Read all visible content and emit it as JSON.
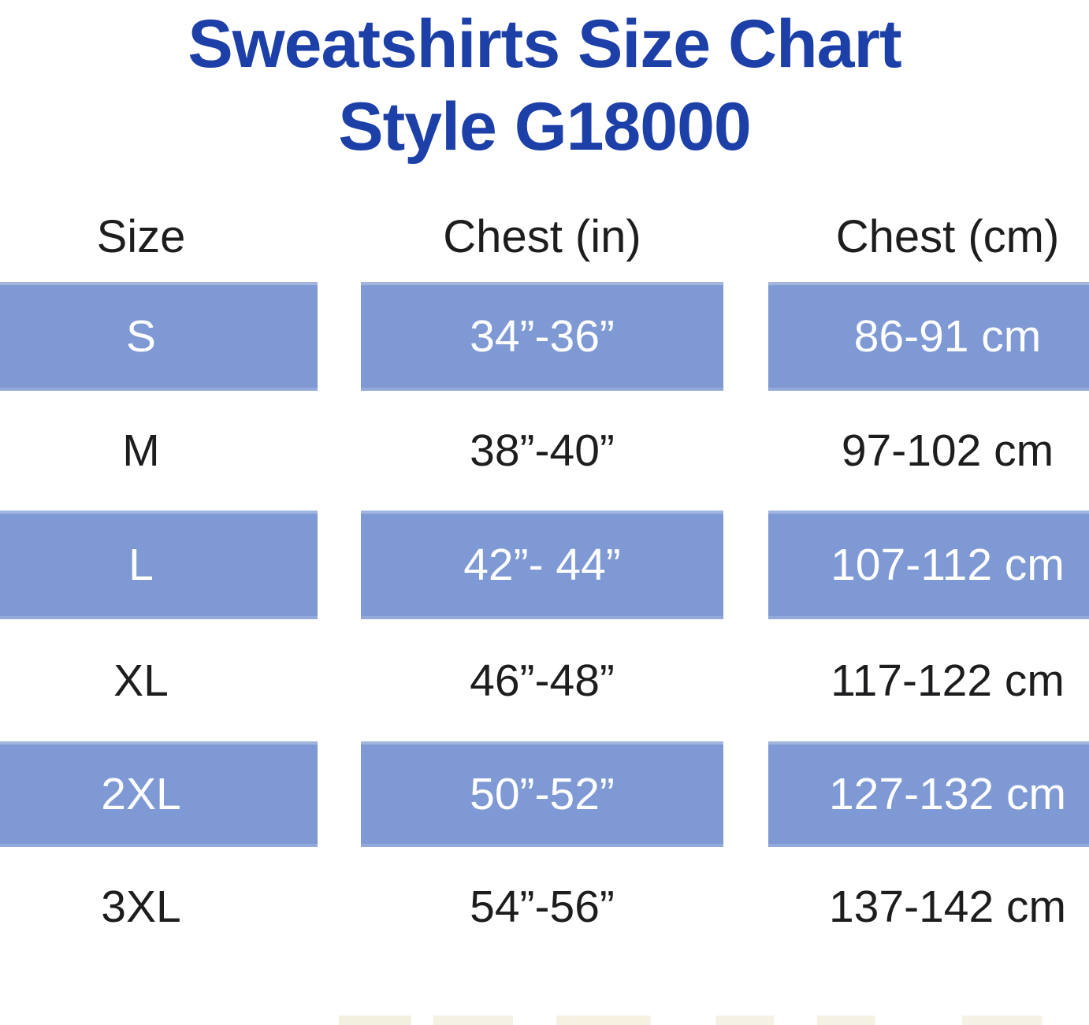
{
  "title": {
    "line1": "Sweatshirts Size Chart",
    "line2": "Style G18000"
  },
  "colors": {
    "title_blue": "#1c3fa8",
    "cell_blue": "#7e99d3",
    "text_dark": "#1d1d1f",
    "text_light": "#ffffff"
  },
  "table": {
    "headers": [
      "Size",
      "Chest (in)",
      "Chest (cm)"
    ],
    "rows": [
      {
        "size": "S",
        "chest_in": "34”-36”",
        "chest_cm": "86-91 cm",
        "highlighted": true
      },
      {
        "size": "M",
        "chest_in": "38”-40”",
        "chest_cm": "97-102 cm",
        "highlighted": false
      },
      {
        "size": "L",
        "chest_in": "42”- 44”",
        "chest_cm": "107-112 cm",
        "highlighted": true
      },
      {
        "size": "XL",
        "chest_in": "46”-48”",
        "chest_cm": "117-122 cm",
        "highlighted": false
      },
      {
        "size": "2XL",
        "chest_in": "50”-52”",
        "chest_cm": "127-132 cm",
        "highlighted": true
      },
      {
        "size": "3XL",
        "chest_in": "54”-56”",
        "chest_cm": "137-142 cm",
        "highlighted": false
      }
    ]
  },
  "chart_data": {
    "type": "table",
    "title": "Sweatshirts Size Chart Style G18000",
    "columns": [
      "Size",
      "Chest (in)",
      "Chest (cm)"
    ],
    "rows": [
      [
        "S",
        "34”-36”",
        "86-91 cm"
      ],
      [
        "M",
        "38”-40”",
        "97-102 cm"
      ],
      [
        "L",
        "42”- 44”",
        "107-112 cm"
      ],
      [
        "XL",
        "46”-48”",
        "117-122 cm"
      ],
      [
        "2XL",
        "50”-52”",
        "127-132 cm"
      ],
      [
        "3XL",
        "54”-56”",
        "137-142 cm"
      ]
    ],
    "layout_hints": {
      "highlighted_rows": [
        "S",
        "L",
        "2XL"
      ],
      "highlight_style": "blue band with white text",
      "plain_style": "white background with dark text"
    }
  }
}
